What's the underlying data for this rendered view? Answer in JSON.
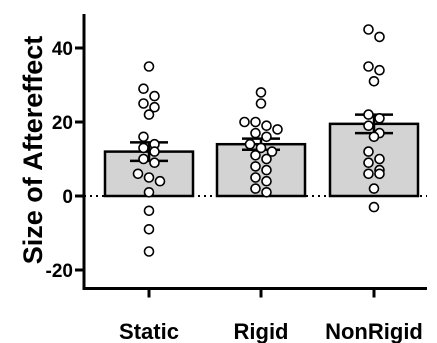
{
  "chart_data": {
    "type": "bar",
    "title": "",
    "xlabel": "",
    "ylabel": "Size of Aftereffect",
    "ylim": [
      -25,
      50
    ],
    "yticks": [
      -20,
      0,
      20,
      40
    ],
    "ytick_labels": [
      "-20",
      "0",
      "20",
      "40"
    ],
    "zero_reference_line": "dotted",
    "colors": {
      "bar_fill": "#d3d3d3",
      "bar_edge": "#000000",
      "point_fill": "#ffffff"
    },
    "categories": [
      "Static",
      "Rigid",
      "NonRigid"
    ],
    "values": [
      12,
      14,
      19.5
    ],
    "sem": [
      2.5,
      1.5,
      2.5
    ],
    "points": [
      [
        35,
        29,
        27,
        25,
        24,
        22,
        16,
        14,
        13,
        12,
        10,
        9,
        6,
        5,
        4,
        1,
        -4,
        -9,
        -15
      ],
      [
        28,
        25,
        20,
        20,
        19,
        18,
        17,
        16,
        14,
        13,
        12,
        11,
        10,
        8,
        7,
        5,
        4,
        2,
        1
      ],
      [
        45,
        43,
        35,
        34,
        31,
        22,
        21,
        19,
        17,
        16,
        12,
        10,
        9,
        7,
        6,
        6,
        2,
        -3
      ]
    ]
  }
}
